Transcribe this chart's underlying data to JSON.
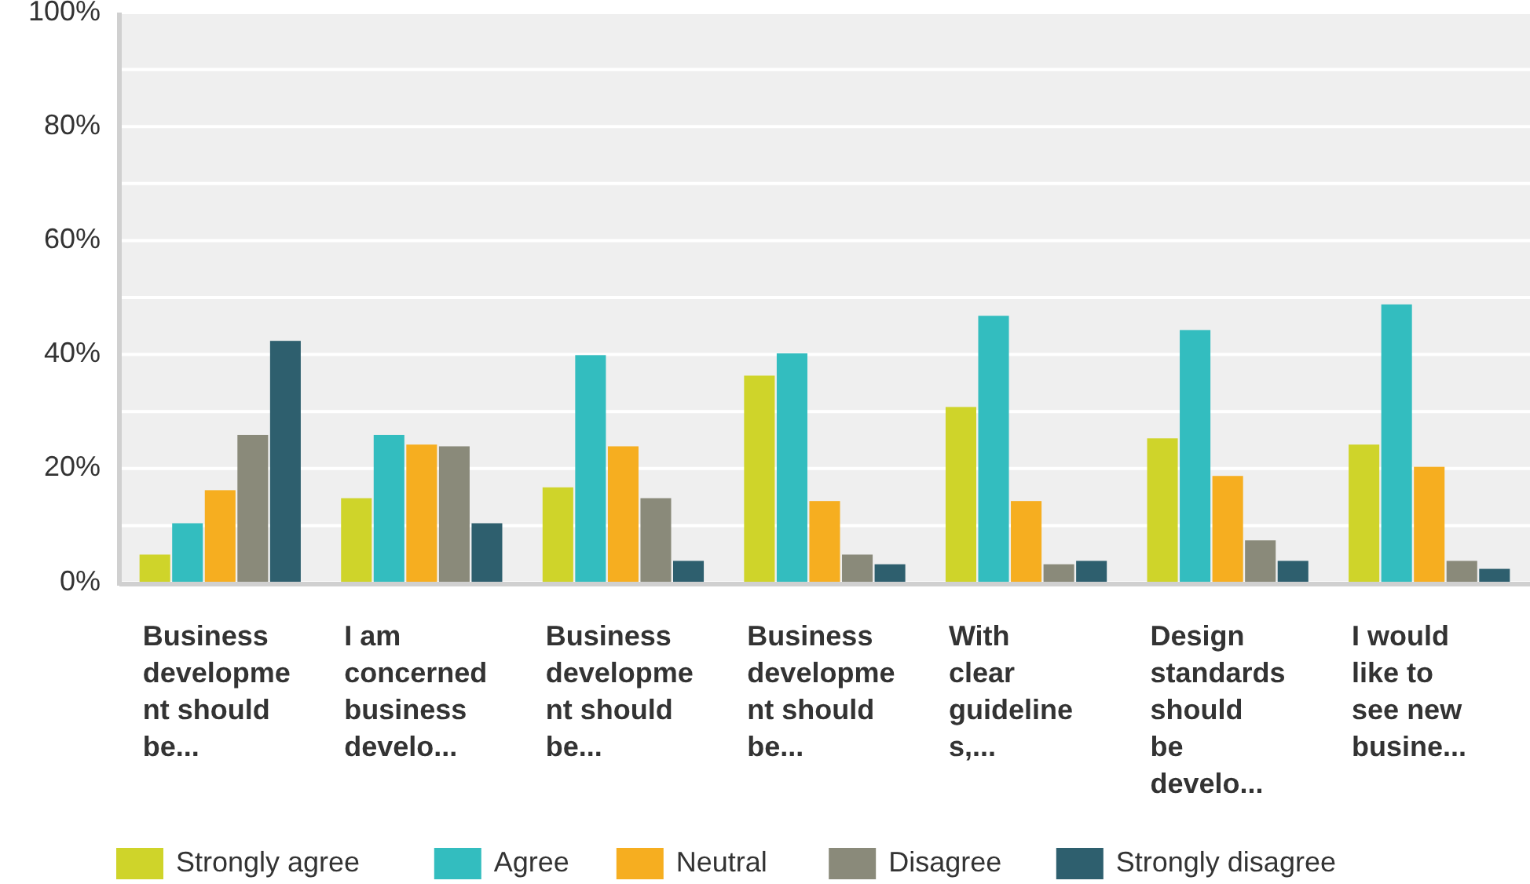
{
  "chart_data": {
    "type": "bar",
    "categories": [
      "Business\ndevelopme\nnt should\nbe...",
      "I am\nconcerned\nbusiness\ndevelo...",
      "Business\ndevelopme\nnt should\nbe...",
      "Business\ndevelopme\nnt should\nbe...",
      "With\nclear\nguideline\ns,...",
      "Design\nstandards\nshould\nbe\ndevelo...",
      "I would\nlike to\nsee new\nbusine..."
    ],
    "series": [
      {
        "name": "Strongly agree",
        "color": "#cfd42a",
        "values": [
          4.9,
          14.8,
          16.7,
          36.3,
          30.8,
          25.3,
          24.2
        ]
      },
      {
        "name": "Agree",
        "color": "#33bdbf",
        "values": [
          10.4,
          25.9,
          39.9,
          40.2,
          46.8,
          44.3,
          48.8
        ]
      },
      {
        "name": "Neutral",
        "color": "#f6ae20",
        "values": [
          16.2,
          24.2,
          23.9,
          14.3,
          14.3,
          18.7,
          20.3
        ]
      },
      {
        "name": "Disagree",
        "color": "#8a8a7a",
        "values": [
          25.9,
          23.9,
          14.8,
          4.9,
          3.2,
          7.4,
          3.8
        ]
      },
      {
        "name": "Strongly disagree",
        "color": "#2e5f6e",
        "values": [
          42.4,
          10.4,
          3.8,
          3.2,
          3.8,
          3.8,
          2.4
        ]
      }
    ],
    "ylim": [
      0,
      100
    ],
    "yticks": [
      {
        "value": 0,
        "label": "0%"
      },
      {
        "value": 10,
        "label": null
      },
      {
        "value": 20,
        "label": "20%"
      },
      {
        "value": 30,
        "label": null
      },
      {
        "value": 40,
        "label": "40%"
      },
      {
        "value": 50,
        "label": null
      },
      {
        "value": 60,
        "label": "60%"
      },
      {
        "value": 70,
        "label": null
      },
      {
        "value": 80,
        "label": "80%"
      },
      {
        "value": 90,
        "label": null
      },
      {
        "value": 100,
        "label": "100%"
      }
    ],
    "grid": true,
    "legend": "bottom"
  }
}
